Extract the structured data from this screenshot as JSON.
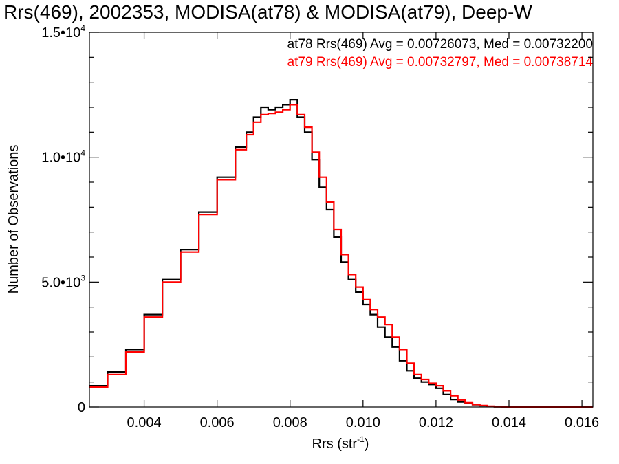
{
  "chart_data": {
    "type": "line",
    "title": "Rrs(469), 2002353, MODISA(at78) & MODISA(at79), Deep-W",
    "xlabel": "Rrs (str",
    "xlabel_sup": "-1",
    "xlabel_close": ")",
    "ylabel": "Number of Observations",
    "xlim": [
      0.0025,
      0.0163
    ],
    "ylim": [
      0,
      15000
    ],
    "x_ticks": [
      {
        "value": 0.004,
        "label": "0.004"
      },
      {
        "value": 0.006,
        "label": "0.006"
      },
      {
        "value": 0.008,
        "label": "0.008"
      },
      {
        "value": 0.01,
        "label": "0.010"
      },
      {
        "value": 0.012,
        "label": "0.012"
      },
      {
        "value": 0.014,
        "label": "0.014"
      },
      {
        "value": 0.016,
        "label": "0.016"
      }
    ],
    "y_ticks": [
      {
        "value": 0,
        "label": "0",
        "sup": ""
      },
      {
        "value": 5000,
        "label": "5.0•10",
        "sup": "3"
      },
      {
        "value": 10000,
        "label": "1.0•10",
        "sup": "4"
      },
      {
        "value": 15000,
        "label": "1.5•10",
        "sup": "4"
      }
    ],
    "grid": false,
    "legend_position": "top-right",
    "series": [
      {
        "name": "at78 Rrs(469) Avg = 0.00726073, Med = 0.00732200",
        "color": "#000000",
        "x": [
          0.0025,
          0.003,
          0.0035,
          0.004,
          0.0045,
          0.005,
          0.0055,
          0.006,
          0.0065,
          0.0068,
          0.007,
          0.0072,
          0.0074,
          0.0076,
          0.0078,
          0.008,
          0.0082,
          0.0084,
          0.0086,
          0.0088,
          0.009,
          0.0092,
          0.0094,
          0.0096,
          0.0098,
          0.01,
          0.0102,
          0.0104,
          0.0106,
          0.0108,
          0.011,
          0.0112,
          0.0114,
          0.0116,
          0.0118,
          0.012,
          0.0122,
          0.0124,
          0.0126,
          0.0128,
          0.013,
          0.0132,
          0.0134,
          0.0136,
          0.0138,
          0.014,
          0.0145,
          0.015,
          0.0163
        ],
        "y": [
          850,
          1400,
          2300,
          3700,
          5100,
          6300,
          7800,
          9200,
          10400,
          11000,
          11600,
          12000,
          11900,
          12000,
          12100,
          12300,
          11600,
          11000,
          9900,
          8800,
          7900,
          6800,
          5800,
          5100,
          4600,
          4100,
          3700,
          3200,
          2800,
          2400,
          1850,
          1450,
          1150,
          1000,
          900,
          750,
          500,
          300,
          200,
          140,
          90,
          50,
          25,
          10,
          5,
          0,
          0,
          0,
          0
        ]
      },
      {
        "name": "at79 Rrs(469) Avg = 0.00732797, Med = 0.00738714",
        "color": "#ff0000",
        "x": [
          0.0025,
          0.003,
          0.0035,
          0.004,
          0.0045,
          0.005,
          0.0055,
          0.006,
          0.0065,
          0.0068,
          0.007,
          0.0072,
          0.0074,
          0.0076,
          0.0078,
          0.008,
          0.0082,
          0.0084,
          0.0086,
          0.0088,
          0.009,
          0.0092,
          0.0094,
          0.0096,
          0.0098,
          0.01,
          0.0102,
          0.0104,
          0.0106,
          0.0108,
          0.011,
          0.0112,
          0.0114,
          0.0116,
          0.0118,
          0.012,
          0.0122,
          0.0124,
          0.0126,
          0.0128,
          0.013,
          0.0132,
          0.0134,
          0.0136,
          0.0138,
          0.014,
          0.0145,
          0.015,
          0.0163
        ],
        "y": [
          800,
          1300,
          2200,
          3600,
          5000,
          6200,
          7700,
          9100,
          10300,
          10900,
          11400,
          11700,
          11750,
          11800,
          11900,
          12100,
          11700,
          11200,
          10200,
          9200,
          8200,
          7100,
          6100,
          5300,
          4800,
          4300,
          3900,
          3600,
          3300,
          2800,
          2300,
          1750,
          1300,
          1100,
          950,
          850,
          650,
          450,
          280,
          170,
          100,
          60,
          30,
          12,
          6,
          0,
          0,
          0,
          0
        ]
      }
    ]
  }
}
